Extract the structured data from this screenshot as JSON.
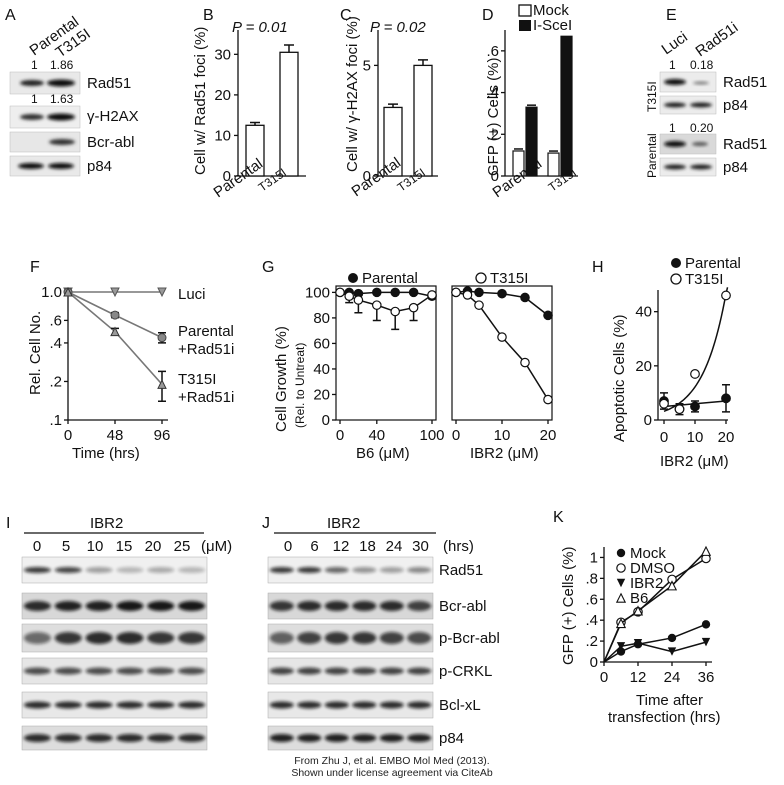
{
  "panels": {
    "A": {
      "letter": "A",
      "lanes": [
        "Parental",
        "T315I"
      ],
      "rows": [
        {
          "label": "Rad51",
          "q": [
            "1",
            "1.86"
          ]
        },
        {
          "label": "γ-H2AX",
          "q": [
            "1",
            "1.63"
          ]
        },
        {
          "label": "Bcr-abl",
          "q": []
        },
        {
          "label": "p84",
          "q": []
        }
      ]
    },
    "B": {
      "letter": "B",
      "pvalue": "P = 0.01",
      "ylabel": "Cell w/ Rad51 foci (%)"
    },
    "C": {
      "letter": "C",
      "pvalue": "P = 0.02",
      "ylabel": "Cell w/ γ-H2AX foci (%)"
    },
    "D": {
      "letter": "D",
      "ylabel": "GFP (+) Cells (%)",
      "legend": [
        "Mock",
        "I-SceI"
      ]
    },
    "E": {
      "letter": "E",
      "lanes": [
        "Luci",
        "Rad51i"
      ],
      "groups": [
        "T315I",
        "Parental"
      ],
      "q_t315i": [
        "1",
        "0.18"
      ],
      "q_parental": [
        "1",
        "0.20"
      ],
      "bands": [
        "Rad51",
        "p84",
        "Rad51",
        "p84"
      ]
    },
    "F": {
      "letter": "F",
      "ylabel": "Rel. Cell No.",
      "xlabel": "Time (hrs)",
      "labels": [
        "Luci",
        "Parental",
        "+Rad51i",
        "T315I",
        "+Rad51i"
      ]
    },
    "G": {
      "letter": "G",
      "ylabel1": "Cell Growth (%)",
      "ylabel2": "(Rel. to Untreat)",
      "legend": [
        "Parental",
        "T315I"
      ],
      "xlabel_left": "B6 (μM)",
      "xlabel_right": "IBR2 (μM)"
    },
    "H": {
      "letter": "H",
      "ylabel": "Apoptotic Cells (%)",
      "xlabel": "IBR2 (μM)",
      "legend": [
        "Parental",
        "T315I"
      ]
    },
    "I": {
      "letter": "I",
      "drug": "IBR2",
      "doses": [
        "0",
        "5",
        "10",
        "15",
        "20",
        "25"
      ],
      "unit": "(μM)"
    },
    "J": {
      "letter": "J",
      "drug": "IBR2",
      "times": [
        "0",
        "6",
        "12",
        "18",
        "24",
        "30"
      ],
      "unit": "(hrs)",
      "bands": [
        "Rad51",
        "Bcr-abl",
        "p-Bcr-abl",
        "p-CRKL",
        "Bcl-xL",
        "p84"
      ]
    },
    "K": {
      "letter": "K",
      "ylabel": "GFP (+) Cells (%)",
      "xlabel1": "Time after",
      "xlabel2": "transfection (hrs)",
      "legend": [
        "Mock",
        "DMSO",
        "IBR2",
        "B6"
      ]
    }
  },
  "chart_data": [
    {
      "panel": "B",
      "type": "bar",
      "categories": [
        "Parental",
        "T315I"
      ],
      "values": [
        12.5,
        30.5
      ],
      "errors": [
        0.7,
        1.8
      ],
      "ylim": [
        0,
        36
      ],
      "yticks": [
        0,
        10,
        20,
        30
      ]
    },
    {
      "panel": "C",
      "type": "bar",
      "categories": [
        "Parental",
        "T315I"
      ],
      "values": [
        3.1,
        5.0
      ],
      "errors": [
        0.15,
        0.25
      ],
      "ylim": [
        0,
        6.6
      ],
      "yticks": [
        0,
        5
      ]
    },
    {
      "panel": "D",
      "type": "bar",
      "categories": [
        "Parental",
        "T315I"
      ],
      "series": [
        {
          "name": "Mock",
          "values": [
            0.12,
            0.11
          ]
        },
        {
          "name": "I-SceI",
          "values": [
            0.33,
            0.67
          ]
        }
      ],
      "ylim": [
        0,
        0.7
      ],
      "yticks": [
        0,
        0.2,
        0.4,
        0.6
      ],
      "ytick_labels": [
        "0",
        ".2",
        ".4",
        ".6"
      ]
    },
    {
      "panel": "F",
      "type": "line",
      "yscale": "log",
      "x": [
        0,
        48,
        96
      ],
      "xticks": [
        "0",
        "48",
        "96"
      ],
      "yticks": [
        0.1,
        0.2,
        0.4,
        0.6,
        1.0
      ],
      "ytick_labels": [
        ".1",
        ".2",
        ".4",
        ".6",
        "1.0"
      ],
      "series": [
        {
          "name": "Luci",
          "values": [
            1.0,
            1.0,
            1.0
          ]
        },
        {
          "name": "Parental +Rad51i",
          "values": [
            1.0,
            0.66,
            0.44
          ],
          "err": [
            0,
            0.03,
            0.04
          ]
        },
        {
          "name": "T315I +Rad51i",
          "values": [
            1.0,
            0.49,
            0.19
          ],
          "err": [
            0,
            0.03,
            0.05
          ]
        }
      ]
    },
    {
      "panel": "G-B6",
      "type": "line",
      "x": [
        0,
        10,
        20,
        40,
        60,
        80,
        100
      ],
      "xticks": [
        "0",
        "40",
        "100"
      ],
      "ylim": [
        0,
        105
      ],
      "yticks": [
        0,
        20,
        40,
        60,
        80,
        100
      ],
      "series": [
        {
          "name": "Parental",
          "values": [
            100,
            100,
            99,
            100,
            100,
            100,
            97
          ]
        },
        {
          "name": "T315I",
          "values": [
            100,
            97,
            94,
            90,
            85,
            88,
            98
          ],
          "err": [
            0,
            5,
            10,
            12,
            14,
            10,
            3
          ]
        }
      ]
    },
    {
      "panel": "G-IBR2",
      "type": "line",
      "x": [
        0,
        2.5,
        5,
        10,
        15,
        20
      ],
      "xticks": [
        "0",
        "10",
        "20"
      ],
      "ylim": [
        0,
        105
      ],
      "series": [
        {
          "name": "Parental",
          "values": [
            100,
            101,
            100,
            99,
            96,
            82
          ]
        },
        {
          "name": "T315I",
          "values": [
            100,
            98,
            90,
            65,
            45,
            16
          ]
        }
      ]
    },
    {
      "panel": "H",
      "type": "line",
      "x": [
        0,
        5,
        10,
        20
      ],
      "xticks": [
        "0",
        "10",
        "20"
      ],
      "ylim": [
        0,
        48
      ],
      "yticks": [
        0,
        20,
        40
      ],
      "series": [
        {
          "name": "Parental",
          "values": [
            7,
            4,
            5,
            8
          ],
          "err": [
            3,
            2,
            2,
            5
          ]
        },
        {
          "name": "T315I",
          "values": [
            6,
            4,
            17,
            46
          ]
        }
      ]
    },
    {
      "panel": "K",
      "type": "line",
      "x": [
        0,
        6,
        12,
        24,
        36
      ],
      "xticks": [
        "0",
        "12",
        "24",
        "36"
      ],
      "ylim": [
        0,
        1.1
      ],
      "yticks": [
        0,
        0.2,
        0.4,
        0.6,
        0.8,
        1.0
      ],
      "ytick_labels": [
        "0",
        ".2",
        ".4",
        ".6",
        ".8",
        "1"
      ],
      "series": [
        {
          "name": "Mock",
          "values": [
            0,
            0.1,
            0.17,
            0.23,
            0.36
          ]
        },
        {
          "name": "DMSO",
          "values": [
            0,
            0.38,
            0.48,
            0.79,
            0.99
          ]
        },
        {
          "name": "IBR2",
          "values": [
            0,
            0.15,
            0.18,
            0.1,
            0.19
          ]
        },
        {
          "name": "B6",
          "values": [
            0,
            0.37,
            0.49,
            0.73,
            1.06
          ]
        }
      ]
    }
  ],
  "credit": {
    "line1": "From Zhu J, et al. EMBO Mol Med (2013).",
    "line2": "Shown under license agreement via CiteAb"
  }
}
